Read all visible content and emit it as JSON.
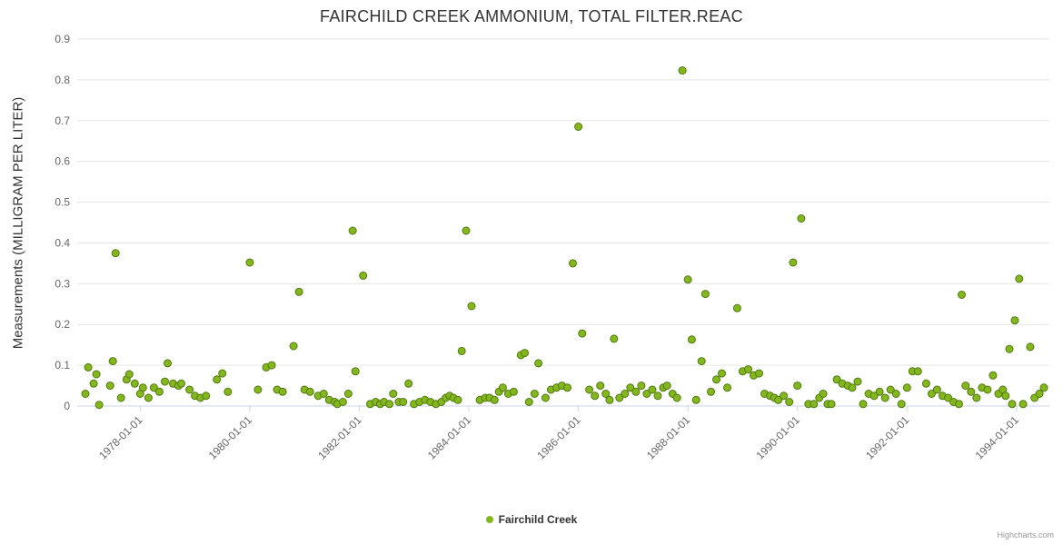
{
  "credit": "Highcharts.com",
  "legend": {
    "label": "Fairchild Creek"
  },
  "colors": {
    "point_fill": "#84b71e",
    "point_stroke": "#507a10",
    "grid": "#e6e6e6",
    "axis_line": "#ccd6eb",
    "tick_label": "#666666",
    "title_color": "#333333"
  },
  "chart_data": {
    "type": "scatter",
    "title": "FAIRCHILD CREEK AMMONIUM, TOTAL FILTER.REAC",
    "xlabel": "",
    "ylabel": "Measurements (MILLIGRAM PER LITER)",
    "ylim": [
      0,
      0.9
    ],
    "xlim": [
      1976.85,
      1994.6
    ],
    "grid": "horizontal-only",
    "legend_position": "bottom-center",
    "yticks": [
      {
        "value": 0.0,
        "label": "0"
      },
      {
        "value": 0.1,
        "label": "0.1"
      },
      {
        "value": 0.2,
        "label": "0.2"
      },
      {
        "value": 0.3,
        "label": "0.3"
      },
      {
        "value": 0.4,
        "label": "0.4"
      },
      {
        "value": 0.5,
        "label": "0.5"
      },
      {
        "value": 0.6,
        "label": "0.6"
      },
      {
        "value": 0.7,
        "label": "0.7"
      },
      {
        "value": 0.8,
        "label": "0.8"
      },
      {
        "value": 0.9,
        "label": "0.9"
      }
    ],
    "xticks": [
      {
        "value": 1978,
        "label": "1978-01-01"
      },
      {
        "value": 1980,
        "label": "1980-01-01"
      },
      {
        "value": 1982,
        "label": "1982-01-01"
      },
      {
        "value": 1984,
        "label": "1984-01-01"
      },
      {
        "value": 1986,
        "label": "1986-01-01"
      },
      {
        "value": 1988,
        "label": "1988-01-01"
      },
      {
        "value": 1990,
        "label": "1990-01-01"
      },
      {
        "value": 1992,
        "label": "1992-01-01"
      },
      {
        "value": 1994,
        "label": "1994-01-01"
      }
    ],
    "series": [
      {
        "name": "Fairchild Creek",
        "points": [
          [
            1977.0,
            0.03
          ],
          [
            1977.05,
            0.095
          ],
          [
            1977.15,
            0.055
          ],
          [
            1977.2,
            0.078
          ],
          [
            1977.25,
            0.003
          ],
          [
            1977.45,
            0.05
          ],
          [
            1977.5,
            0.11
          ],
          [
            1977.55,
            0.375
          ],
          [
            1977.65,
            0.02
          ],
          [
            1977.75,
            0.065
          ],
          [
            1977.8,
            0.078
          ],
          [
            1977.9,
            0.055
          ],
          [
            1978.0,
            0.03
          ],
          [
            1978.05,
            0.045
          ],
          [
            1978.15,
            0.02
          ],
          [
            1978.25,
            0.045
          ],
          [
            1978.35,
            0.035
          ],
          [
            1978.45,
            0.06
          ],
          [
            1978.5,
            0.105
          ],
          [
            1978.6,
            0.055
          ],
          [
            1978.7,
            0.05
          ],
          [
            1978.75,
            0.055
          ],
          [
            1978.9,
            0.04
          ],
          [
            1979.0,
            0.025
          ],
          [
            1979.1,
            0.02
          ],
          [
            1979.2,
            0.025
          ],
          [
            1979.4,
            0.065
          ],
          [
            1979.5,
            0.08
          ],
          [
            1979.6,
            0.035
          ],
          [
            1980.0,
            0.352
          ],
          [
            1980.15,
            0.04
          ],
          [
            1980.3,
            0.095
          ],
          [
            1980.4,
            0.1
          ],
          [
            1980.5,
            0.04
          ],
          [
            1980.6,
            0.035
          ],
          [
            1980.8,
            0.147
          ],
          [
            1980.9,
            0.28
          ],
          [
            1981.0,
            0.04
          ],
          [
            1981.1,
            0.035
          ],
          [
            1981.25,
            0.025
          ],
          [
            1981.35,
            0.03
          ],
          [
            1981.45,
            0.015
          ],
          [
            1981.55,
            0.01
          ],
          [
            1981.6,
            0.005
          ],
          [
            1981.7,
            0.01
          ],
          [
            1981.8,
            0.03
          ],
          [
            1981.88,
            0.43
          ],
          [
            1981.93,
            0.085
          ],
          [
            1982.07,
            0.32
          ],
          [
            1982.2,
            0.005
          ],
          [
            1982.3,
            0.01
          ],
          [
            1982.38,
            0.005
          ],
          [
            1982.45,
            0.01
          ],
          [
            1982.55,
            0.005
          ],
          [
            1982.62,
            0.03
          ],
          [
            1982.72,
            0.01
          ],
          [
            1982.8,
            0.01
          ],
          [
            1982.9,
            0.055
          ],
          [
            1983.0,
            0.005
          ],
          [
            1983.1,
            0.01
          ],
          [
            1983.2,
            0.015
          ],
          [
            1983.3,
            0.01
          ],
          [
            1983.4,
            0.005
          ],
          [
            1983.5,
            0.01
          ],
          [
            1983.58,
            0.02
          ],
          [
            1983.65,
            0.025
          ],
          [
            1983.72,
            0.02
          ],
          [
            1983.8,
            0.015
          ],
          [
            1983.87,
            0.135
          ],
          [
            1983.95,
            0.43
          ],
          [
            1984.05,
            0.245
          ],
          [
            1984.2,
            0.015
          ],
          [
            1984.3,
            0.02
          ],
          [
            1984.38,
            0.02
          ],
          [
            1984.47,
            0.015
          ],
          [
            1984.55,
            0.035
          ],
          [
            1984.62,
            0.045
          ],
          [
            1984.72,
            0.03
          ],
          [
            1984.82,
            0.035
          ],
          [
            1984.95,
            0.125
          ],
          [
            1985.02,
            0.13
          ],
          [
            1985.1,
            0.01
          ],
          [
            1985.2,
            0.03
          ],
          [
            1985.27,
            0.105
          ],
          [
            1985.4,
            0.02
          ],
          [
            1985.5,
            0.04
          ],
          [
            1985.6,
            0.045
          ],
          [
            1985.7,
            0.05
          ],
          [
            1985.8,
            0.045
          ],
          [
            1985.9,
            0.35
          ],
          [
            1986.0,
            0.685
          ],
          [
            1986.07,
            0.178
          ],
          [
            1986.2,
            0.04
          ],
          [
            1986.3,
            0.025
          ],
          [
            1986.4,
            0.05
          ],
          [
            1986.5,
            0.03
          ],
          [
            1986.57,
            0.015
          ],
          [
            1986.65,
            0.165
          ],
          [
            1986.75,
            0.02
          ],
          [
            1986.85,
            0.03
          ],
          [
            1986.95,
            0.045
          ],
          [
            1987.05,
            0.035
          ],
          [
            1987.15,
            0.05
          ],
          [
            1987.25,
            0.03
          ],
          [
            1987.35,
            0.04
          ],
          [
            1987.45,
            0.025
          ],
          [
            1987.55,
            0.045
          ],
          [
            1987.62,
            0.05
          ],
          [
            1987.72,
            0.03
          ],
          [
            1987.8,
            0.02
          ],
          [
            1987.9,
            0.823
          ],
          [
            1988.0,
            0.31
          ],
          [
            1988.07,
            0.163
          ],
          [
            1988.15,
            0.015
          ],
          [
            1988.25,
            0.11
          ],
          [
            1988.32,
            0.275
          ],
          [
            1988.42,
            0.035
          ],
          [
            1988.52,
            0.065
          ],
          [
            1988.62,
            0.08
          ],
          [
            1988.72,
            0.045
          ],
          [
            1988.9,
            0.24
          ],
          [
            1989.0,
            0.085
          ],
          [
            1989.1,
            0.09
          ],
          [
            1989.2,
            0.075
          ],
          [
            1989.3,
            0.08
          ],
          [
            1989.4,
            0.03
          ],
          [
            1989.5,
            0.025
          ],
          [
            1989.58,
            0.02
          ],
          [
            1989.65,
            0.015
          ],
          [
            1989.75,
            0.025
          ],
          [
            1989.85,
            0.01
          ],
          [
            1989.92,
            0.352
          ],
          [
            1990.0,
            0.05
          ],
          [
            1990.07,
            0.46
          ],
          [
            1990.2,
            0.005
          ],
          [
            1990.3,
            0.005
          ],
          [
            1990.4,
            0.02
          ],
          [
            1990.47,
            0.03
          ],
          [
            1990.55,
            0.005
          ],
          [
            1990.62,
            0.005
          ],
          [
            1990.72,
            0.065
          ],
          [
            1990.82,
            0.055
          ],
          [
            1990.92,
            0.05
          ],
          [
            1991.0,
            0.045
          ],
          [
            1991.1,
            0.06
          ],
          [
            1991.2,
            0.005
          ],
          [
            1991.3,
            0.03
          ],
          [
            1991.4,
            0.025
          ],
          [
            1991.5,
            0.035
          ],
          [
            1991.6,
            0.02
          ],
          [
            1991.7,
            0.04
          ],
          [
            1991.8,
            0.03
          ],
          [
            1991.9,
            0.005
          ],
          [
            1992.0,
            0.045
          ],
          [
            1992.1,
            0.085
          ],
          [
            1992.2,
            0.085
          ],
          [
            1992.35,
            0.055
          ],
          [
            1992.45,
            0.03
          ],
          [
            1992.55,
            0.04
          ],
          [
            1992.65,
            0.025
          ],
          [
            1992.75,
            0.02
          ],
          [
            1992.85,
            0.01
          ],
          [
            1992.95,
            0.005
          ],
          [
            1993.0,
            0.273
          ],
          [
            1993.07,
            0.05
          ],
          [
            1993.17,
            0.035
          ],
          [
            1993.27,
            0.02
          ],
          [
            1993.37,
            0.045
          ],
          [
            1993.47,
            0.04
          ],
          [
            1993.57,
            0.075
          ],
          [
            1993.67,
            0.03
          ],
          [
            1993.75,
            0.04
          ],
          [
            1993.8,
            0.025
          ],
          [
            1993.87,
            0.14
          ],
          [
            1993.92,
            0.005
          ],
          [
            1993.97,
            0.21
          ],
          [
            1994.05,
            0.312
          ],
          [
            1994.12,
            0.005
          ],
          [
            1994.25,
            0.145
          ],
          [
            1994.33,
            0.02
          ],
          [
            1994.42,
            0.03
          ],
          [
            1994.5,
            0.045
          ]
        ]
      }
    ]
  }
}
